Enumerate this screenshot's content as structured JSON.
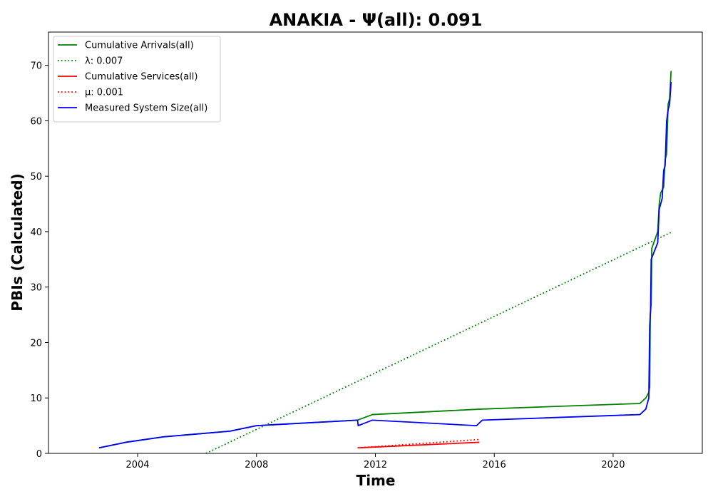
{
  "chart_data": {
    "type": "line",
    "title": "ANAKIA -  Ψ(all): 0.091",
    "xlabel": "Time",
    "ylabel": "PBIs (Calculated)",
    "xlim": [
      2001.0,
      2023.0
    ],
    "ylim": [
      0,
      76
    ],
    "xticks": [
      2004,
      2008,
      2012,
      2016,
      2020
    ],
    "yticks": [
      0,
      10,
      20,
      30,
      40,
      50,
      60,
      70
    ],
    "grid": false,
    "legend_position": "top-left",
    "series": [
      {
        "name": "Cumulative Arrivals(all)",
        "color": "#008000",
        "style": "solid",
        "points": [
          [
            2002.7,
            1
          ],
          [
            2003.6,
            2
          ],
          [
            2004.9,
            3
          ],
          [
            2007.1,
            4
          ],
          [
            2008.0,
            5
          ],
          [
            2011.4,
            6
          ],
          [
            2011.9,
            7
          ],
          [
            2015.6,
            8
          ],
          [
            2020.9,
            9
          ],
          [
            2021.1,
            10
          ],
          [
            2021.2,
            11
          ],
          [
            2021.23,
            12
          ],
          [
            2021.25,
            25
          ],
          [
            2021.28,
            27
          ],
          [
            2021.3,
            37
          ],
          [
            2021.5,
            40
          ],
          [
            2021.55,
            45
          ],
          [
            2021.6,
            47
          ],
          [
            2021.7,
            48
          ],
          [
            2021.75,
            53
          ],
          [
            2021.8,
            54
          ],
          [
            2021.85,
            63
          ],
          [
            2021.9,
            64
          ],
          [
            2021.95,
            69
          ]
        ]
      },
      {
        "name": "λ: 0.007",
        "color": "#008000",
        "style": "dotted",
        "points": [
          [
            2006.3,
            0
          ],
          [
            2022.0,
            40
          ]
        ]
      },
      {
        "name": "Cumulative Services(all)",
        "color": "#ff0000",
        "style": "solid",
        "points": [
          [
            2011.4,
            1
          ],
          [
            2015.5,
            2
          ]
        ]
      },
      {
        "name": "μ: 0.001",
        "color": "#ff0000",
        "style": "dotted",
        "points": [
          [
            2011.4,
            1
          ],
          [
            2015.5,
            2.5
          ]
        ]
      },
      {
        "name": "Measured System Size(all)",
        "color": "#0000ff",
        "style": "solid",
        "points": [
          [
            2002.7,
            1
          ],
          [
            2003.6,
            2
          ],
          [
            2004.9,
            3
          ],
          [
            2007.1,
            4
          ],
          [
            2008.0,
            5
          ],
          [
            2011.4,
            6
          ],
          [
            2011.42,
            5
          ],
          [
            2011.9,
            6
          ],
          [
            2015.4,
            5
          ],
          [
            2015.6,
            6
          ],
          [
            2020.9,
            7
          ],
          [
            2021.1,
            8
          ],
          [
            2021.2,
            10
          ],
          [
            2021.23,
            23
          ],
          [
            2021.26,
            26
          ],
          [
            2021.28,
            35
          ],
          [
            2021.5,
            38
          ],
          [
            2021.55,
            44
          ],
          [
            2021.65,
            46
          ],
          [
            2021.7,
            51
          ],
          [
            2021.75,
            52
          ],
          [
            2021.8,
            60
          ],
          [
            2021.85,
            62
          ],
          [
            2021.9,
            63
          ],
          [
            2021.95,
            67
          ]
        ]
      }
    ]
  }
}
